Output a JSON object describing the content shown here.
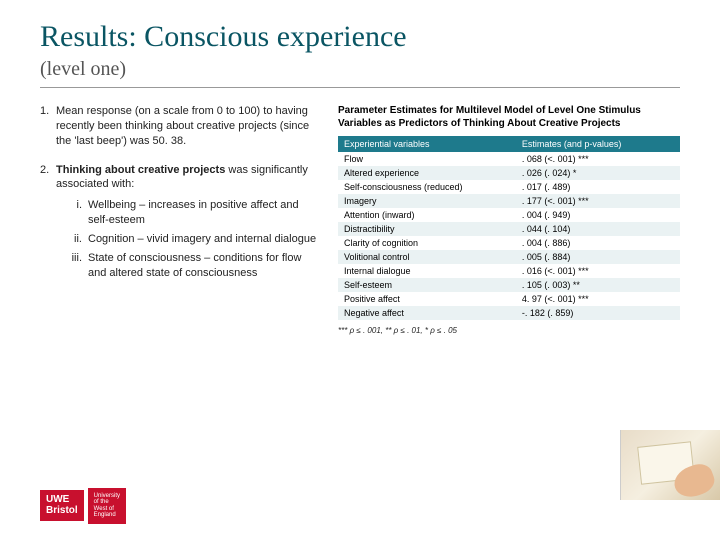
{
  "title": "Results: Conscious experience",
  "subtitle": "(level one)",
  "points": {
    "p1_num": "1.",
    "p1_text": "Mean response (on a scale from 0 to 100) to having recently been thinking about creative projects (since the 'last beep') was 50. 38.",
    "p2_num": "2.",
    "p2_lead_bold": "Thinking about creative projects",
    "p2_lead_rest": " was significantly associated with:",
    "sub1_num": "i.",
    "sub1_label": "Wellbeing",
    "sub1_rest": " – increases in positive affect and self-esteem",
    "sub2_num": "ii.",
    "sub2_label": "Cognition",
    "sub2_rest": " – vivid imagery and internal dialogue",
    "sub3_num": "iii.",
    "sub3_label": "State of consciousness",
    "sub3_rest": " – conditions for flow and altered state of consciousness"
  },
  "table": {
    "caption": "Parameter Estimates for Multilevel Model of Level One Stimulus Variables as Predictors of Thinking About Creative Projects",
    "header_var": "Experiential variables",
    "header_est": "Estimates (and p-values)",
    "header_bg": "#1e7a8c",
    "row_even_bg": "#eaf2f3",
    "rows": [
      {
        "var": "Flow",
        "est": ". 068 (<. 001) ***"
      },
      {
        "var": "Altered experience",
        "est": ". 026 (. 024) *"
      },
      {
        "var": "Self-consciousness (reduced)",
        "est": ". 017 (. 489)"
      },
      {
        "var": "Imagery",
        "est": ". 177 (<. 001) ***"
      },
      {
        "var": "Attention (inward)",
        "est": ". 004 (. 949)"
      },
      {
        "var": "Distractibility",
        "est": ". 044 (. 104)"
      },
      {
        "var": "Clarity of cognition",
        "est": ". 004 (. 886)"
      },
      {
        "var": "Volitional control",
        "est": ". 005 (. 884)"
      },
      {
        "var": "Internal dialogue",
        "est": ". 016 (<. 001) ***"
      },
      {
        "var": "Self-esteem",
        "est": ". 105 (. 003) **"
      },
      {
        "var": "Positive affect",
        "est": "4. 97 (<. 001) ***"
      },
      {
        "var": "Negative affect",
        "est": "-. 182 (. 859)"
      }
    ],
    "sig_note": "*** ρ ≤ . 001, ** ρ ≤ . 01, * ρ ≤ . 05"
  },
  "logo": {
    "brand_l1": "UWE",
    "brand_l2": "Bristol",
    "caption": "University\nof the\nWest of\nEngland"
  }
}
